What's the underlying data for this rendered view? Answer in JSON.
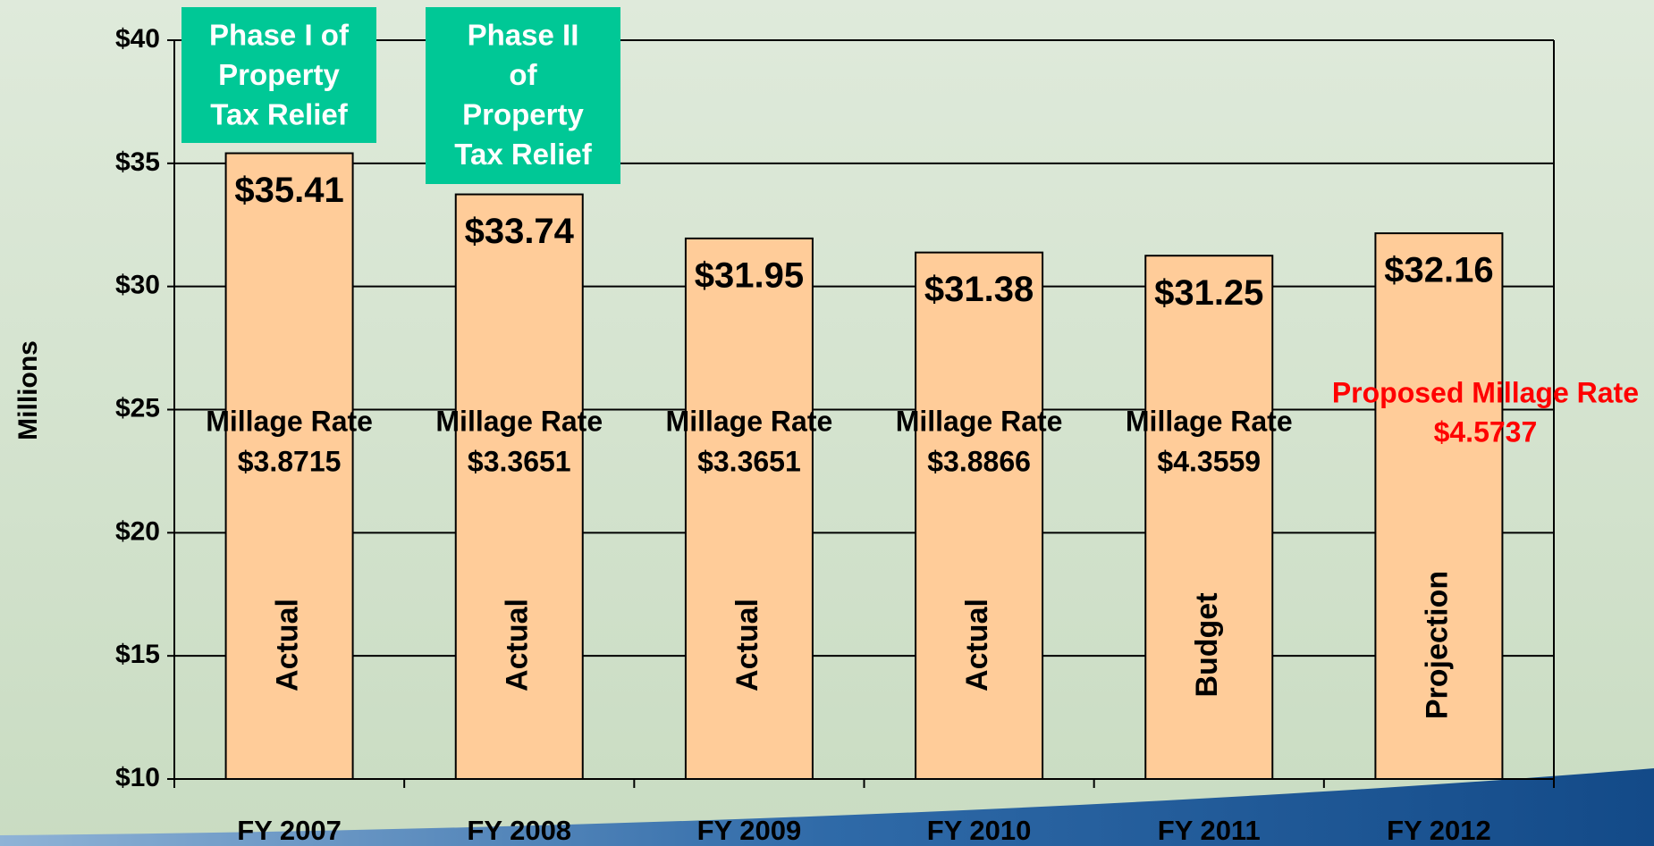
{
  "chart_data": {
    "type": "bar",
    "y_label": "Millions",
    "categories": [
      "FY 2007",
      "FY 2008",
      "FY 2009",
      "FY 2010",
      "FY 2011",
      "FY 2012"
    ],
    "values": [
      35.41,
      33.74,
      31.95,
      31.38,
      31.25,
      32.16
    ],
    "value_labels": [
      "$35.41",
      "$33.74",
      "$31.95",
      "$31.38",
      "$31.25",
      "$32.16"
    ],
    "color": "#ffcc99",
    "ylim": [
      10,
      40
    ],
    "yticks": [
      {
        "value": 10,
        "label": "$10"
      },
      {
        "value": 15,
        "label": "$15"
      },
      {
        "value": 20,
        "label": "$20"
      },
      {
        "value": 25,
        "label": "$25"
      },
      {
        "value": 30,
        "label": "$30"
      },
      {
        "value": 35,
        "label": "$35"
      },
      {
        "value": 40,
        "label": "$40"
      }
    ],
    "grid": true,
    "bar_notes": [
      "Actual",
      "Actual",
      "Actual",
      "Actual",
      "Budget",
      "Projection"
    ],
    "millage_titles": [
      "Millage Rate",
      "Millage Rate",
      "Millage Rate",
      "Millage Rate",
      "Millage Rate",
      "Proposed Millage Rate"
    ],
    "millage_rates": [
      "$3.8715",
      "$3.3651",
      "$3.3651",
      "$3.8866",
      "$4.3559",
      "$4.5737"
    ],
    "annotations": [
      {
        "lines": [
          "Phase I of",
          "Property",
          "Tax Relief"
        ]
      },
      {
        "lines": [
          "Phase II",
          "of",
          "Property",
          "Tax Relief"
        ]
      }
    ]
  }
}
